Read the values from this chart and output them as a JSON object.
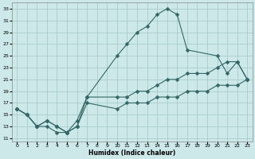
{
  "xlabel": "Humidex (Indice chaleur)",
  "ylabel": "",
  "bg_color": "#cde8e8",
  "grid_color": "#aacccc",
  "line_color": "#336666",
  "xlim": [
    -0.5,
    23.5
  ],
  "ylim": [
    10.5,
    34
  ],
  "xticks": [
    0,
    1,
    2,
    3,
    4,
    5,
    6,
    7,
    8,
    9,
    10,
    11,
    12,
    13,
    14,
    15,
    16,
    17,
    18,
    19,
    20,
    21,
    22,
    23
  ],
  "yticks": [
    11,
    13,
    15,
    17,
    19,
    21,
    23,
    25,
    27,
    29,
    31,
    33
  ],
  "line1_x": [
    0,
    1,
    2,
    3,
    4,
    5,
    6,
    7,
    10,
    11,
    12,
    13,
    14,
    15,
    16,
    17,
    20,
    21,
    22,
    23
  ],
  "line1_y": [
    16,
    15,
    13,
    13,
    12,
    12,
    13,
    18,
    25,
    27,
    29,
    30,
    32,
    33,
    32,
    26,
    25,
    22,
    24,
    21
  ],
  "line2_x": [
    0,
    1,
    2,
    3,
    4,
    5,
    6,
    7,
    10,
    11,
    12,
    13,
    14,
    15,
    16,
    17,
    18,
    19,
    20,
    21,
    22,
    23
  ],
  "line2_y": [
    16,
    15,
    13,
    14,
    13,
    12,
    14,
    18,
    18,
    18,
    19,
    19,
    20,
    21,
    21,
    22,
    22,
    22,
    23,
    24,
    24,
    21
  ],
  "line3_x": [
    0,
    1,
    2,
    3,
    4,
    5,
    6,
    7,
    10,
    11,
    12,
    13,
    14,
    15,
    16,
    17,
    18,
    19,
    20,
    21,
    22,
    23
  ],
  "line3_y": [
    16,
    15,
    13,
    14,
    13,
    12,
    13,
    17,
    16,
    17,
    17,
    17,
    18,
    18,
    18,
    19,
    19,
    19,
    20,
    20,
    20,
    21
  ]
}
